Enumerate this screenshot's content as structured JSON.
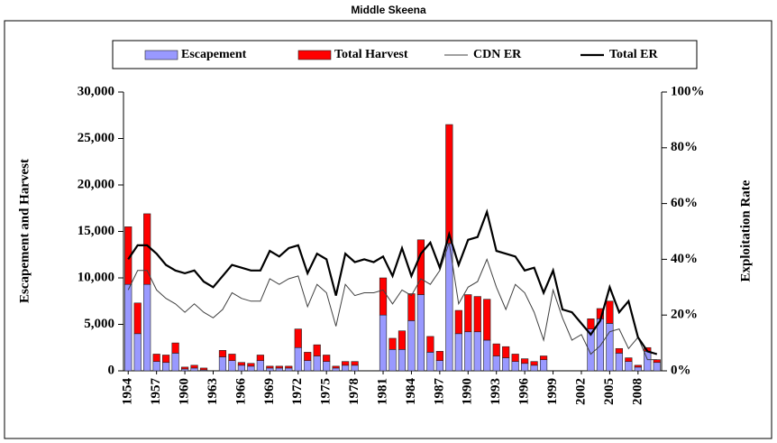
{
  "chart_data": {
    "type": "bar",
    "stacked": true,
    "title": "Middle Skeena",
    "y_label": "Escapement and Harvest",
    "y2_label": "Exploitation Rate",
    "categories": [
      "1954",
      null,
      null,
      "1957",
      null,
      null,
      "1960",
      null,
      null,
      "1963",
      null,
      null,
      "1966",
      null,
      null,
      "1969",
      null,
      null,
      "1972",
      null,
      null,
      "1975",
      null,
      null,
      "1978",
      null,
      null,
      "1981",
      null,
      null,
      "1984",
      null,
      null,
      "1987",
      null,
      null,
      "1990",
      null,
      null,
      "1993",
      null,
      null,
      "1996",
      null,
      null,
      "1999",
      null,
      null,
      "2002",
      null,
      null,
      "2005",
      null,
      null,
      "2008",
      null,
      null
    ],
    "series": [
      {
        "name": "Escapement",
        "color": "#9999ff",
        "values": [
          9300,
          4000,
          9300,
          1000,
          900,
          1900,
          200,
          300,
          100,
          0,
          1500,
          1100,
          600,
          500,
          1100,
          300,
          300,
          300,
          2500,
          1100,
          1600,
          1000,
          300,
          600,
          600,
          0,
          0,
          6000,
          2300,
          2300,
          5400,
          8200,
          2000,
          1100,
          13700,
          4000,
          4200,
          4200,
          3300,
          1600,
          1400,
          1000,
          800,
          600,
          1200,
          0,
          0,
          0,
          0,
          4500,
          5600,
          5100,
          1900,
          1000,
          400,
          2100,
          900
        ]
      },
      {
        "name": "Total Harvest",
        "color": "#ff0000",
        "values": [
          6200,
          3300,
          7600,
          800,
          800,
          1100,
          200,
          300,
          200,
          0,
          700,
          700,
          300,
          300,
          600,
          200,
          200,
          200,
          2000,
          900,
          1200,
          700,
          200,
          400,
          400,
          0,
          0,
          4000,
          1200,
          2000,
          2900,
          5900,
          1700,
          1000,
          12800,
          2500,
          4000,
          3800,
          4400,
          1300,
          1200,
          800,
          500,
          400,
          400,
          0,
          0,
          0,
          0,
          1100,
          1100,
          2400,
          500,
          400,
          200,
          400,
          300
        ]
      },
      {
        "name": "CDN ER",
        "color": "#404040",
        "axis": "y2",
        "values": [
          29,
          36,
          36,
          29,
          26,
          24,
          21,
          24,
          21,
          19,
          22,
          28,
          26,
          25,
          25,
          33,
          31,
          33,
          34,
          23,
          31,
          28,
          16,
          31,
          27,
          28,
          28,
          29,
          24,
          29,
          27,
          33,
          31,
          36,
          46,
          24,
          30,
          32,
          40,
          30,
          22,
          31,
          28,
          21,
          11,
          29,
          19,
          11,
          13,
          6,
          9,
          14,
          15,
          8,
          12,
          4,
          4
        ]
      },
      {
        "name": "Total ER",
        "color": "#000000",
        "axis": "y2",
        "values": [
          40,
          45,
          45,
          42,
          38,
          36,
          35,
          36,
          32,
          30,
          34,
          38,
          37,
          36,
          36,
          43,
          41,
          44,
          45,
          35,
          42,
          40,
          27,
          42,
          39,
          40,
          39,
          41,
          34,
          44,
          34,
          42,
          46,
          37,
          49,
          38,
          47,
          48,
          57,
          43,
          42,
          41,
          36,
          37,
          28,
          36,
          22,
          21,
          17,
          13,
          18,
          30,
          21,
          25,
          12,
          7,
          6
        ]
      }
    ],
    "ylim": [
      0,
      30000
    ],
    "yticks": [
      0,
      {
        "value": 5000,
        "label": "5,000"
      },
      {
        "value": 10000,
        "label": "10,000"
      },
      {
        "value": 15000,
        "label": "15,000"
      },
      {
        "value": 20000,
        "label": "20,000"
      },
      {
        "value": 25000,
        "label": "25,000"
      },
      {
        "value": 30000,
        "label": "30,000"
      }
    ],
    "y2lim": [
      0,
      100
    ],
    "y2ticks": [
      {
        "value": 0,
        "label": "0%"
      },
      {
        "value": 20,
        "label": "20%"
      },
      {
        "value": 40,
        "label": "40%"
      },
      {
        "value": 60,
        "label": "60%"
      },
      {
        "value": 80,
        "label": "80%"
      },
      {
        "value": 100,
        "label": "100%"
      }
    ],
    "legend": "top"
  }
}
